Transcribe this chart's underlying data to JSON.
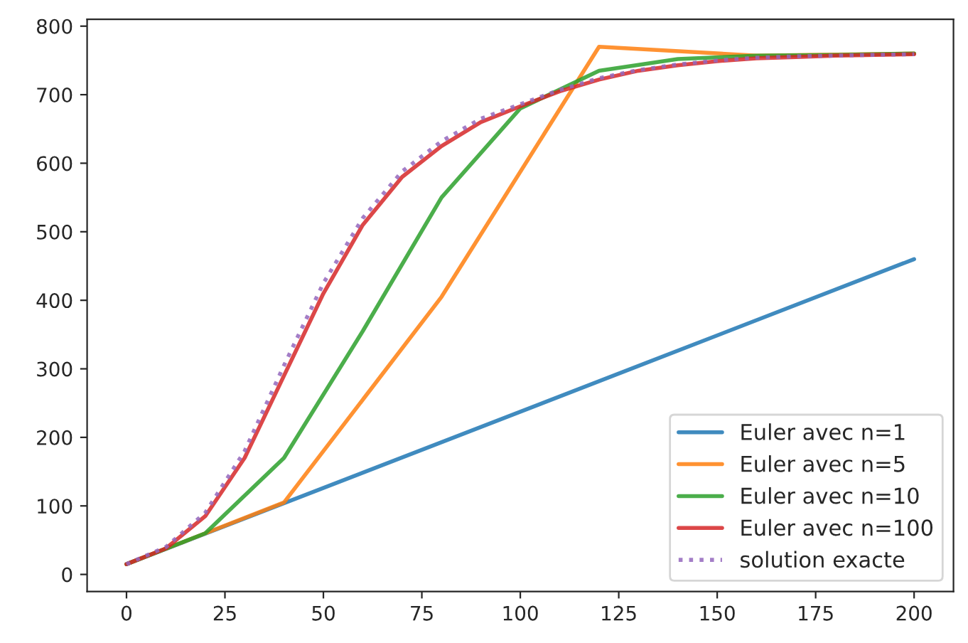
{
  "chart_data": {
    "type": "line",
    "xlim": [
      -10,
      210
    ],
    "ylim": [
      -25,
      810
    ],
    "xticks": [
      0,
      25,
      50,
      75,
      100,
      125,
      150,
      175,
      200
    ],
    "yticks": [
      0,
      100,
      200,
      300,
      400,
      500,
      600,
      700,
      800
    ],
    "grid": false,
    "legend": "bottom right",
    "series": [
      {
        "name": "Euler avec n=1",
        "color": "#1f77b4",
        "line_style": "solid",
        "x": [
          0,
          200
        ],
        "values": [
          15,
          460
        ]
      },
      {
        "name": "Euler avec n=5",
        "color": "#ff7f0e",
        "line_style": "solid",
        "x": [
          0,
          40,
          80,
          120,
          160,
          200
        ],
        "values": [
          15,
          105,
          405,
          770,
          757,
          760
        ]
      },
      {
        "name": "Euler avec n=10",
        "color": "#2ca02c",
        "line_style": "solid",
        "x": [
          0,
          20,
          40,
          60,
          80,
          100,
          120,
          140,
          160,
          180,
          200
        ],
        "values": [
          15,
          60,
          170,
          355,
          550,
          680,
          735,
          752,
          757,
          758,
          760
        ]
      },
      {
        "name": "Euler avec n=100",
        "color": "#d62728",
        "line_style": "solid",
        "x": [
          0,
          10,
          20,
          30,
          40,
          50,
          60,
          70,
          80,
          90,
          100,
          110,
          120,
          130,
          140,
          150,
          160,
          170,
          180,
          190,
          200
        ],
        "values": [
          15,
          38,
          85,
          170,
          290,
          410,
          510,
          580,
          625,
          660,
          683,
          705,
          722,
          735,
          743,
          749,
          753,
          755,
          757,
          758,
          759
        ]
      },
      {
        "name": "solution exacte",
        "color": "#9467bd",
        "line_style": "dotted",
        "x": [
          0,
          10,
          20,
          30,
          40,
          50,
          60,
          70,
          80,
          90,
          100,
          110,
          120,
          130,
          140,
          150,
          160,
          170,
          180,
          190,
          200
        ],
        "values": [
          15,
          40,
          90,
          180,
          305,
          425,
          520,
          588,
          632,
          665,
          686,
          707,
          724,
          736,
          744,
          750,
          754,
          756,
          757,
          758,
          759
        ]
      }
    ]
  }
}
